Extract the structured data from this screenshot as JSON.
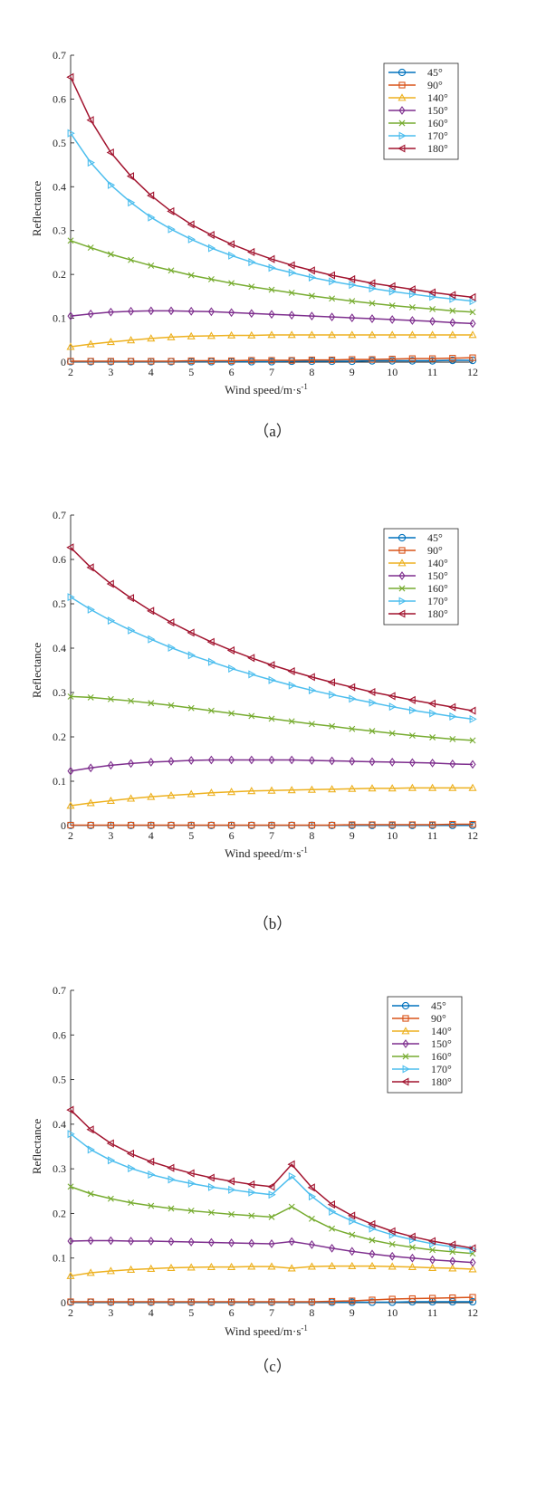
{
  "chart_data": [
    {
      "type": "line",
      "panel_label": "（a）",
      "ylabel": "Reflectance",
      "xlabel": "Wind speed/m·s",
      "xlabel_sup": "-1",
      "xlim": [
        2,
        12
      ],
      "ylim": [
        0,
        0.7
      ],
      "xticks": [
        2,
        3,
        4,
        5,
        6,
        7,
        8,
        9,
        10,
        11,
        12
      ],
      "yticks": [
        0,
        0.1,
        0.2,
        0.3,
        0.4,
        0.5,
        0.6,
        0.7
      ],
      "grid": false,
      "legend_position": "top-right",
      "x": [
        2,
        2.5,
        3,
        3.5,
        4,
        4.5,
        5,
        5.5,
        6,
        6.5,
        7,
        7.5,
        8,
        8.5,
        9,
        9.5,
        10,
        10.5,
        11,
        11.5,
        12
      ],
      "series": [
        {
          "name": "45°",
          "values": [
            0.001,
            0.001,
            0.001,
            0.001,
            0.001,
            0.001,
            0.001,
            0.001,
            0.001,
            0.001,
            0.001,
            0.002,
            0.002,
            0.002,
            0.002,
            0.003,
            0.003,
            0.003,
            0.003,
            0.004,
            0.004
          ]
        },
        {
          "name": "90°",
          "values": [
            0.002,
            0.002,
            0.002,
            0.002,
            0.002,
            0.002,
            0.003,
            0.003,
            0.003,
            0.004,
            0.004,
            0.004,
            0.005,
            0.005,
            0.006,
            0.006,
            0.007,
            0.008,
            0.008,
            0.009,
            0.01
          ]
        },
        {
          "name": "140°",
          "values": [
            0.035,
            0.041,
            0.046,
            0.05,
            0.054,
            0.057,
            0.059,
            0.06,
            0.061,
            0.061,
            0.062,
            0.062,
            0.062,
            0.062,
            0.062,
            0.062,
            0.062,
            0.062,
            0.062,
            0.062,
            0.062
          ]
        },
        {
          "name": "150°",
          "values": [
            0.105,
            0.11,
            0.114,
            0.116,
            0.117,
            0.117,
            0.116,
            0.115,
            0.113,
            0.111,
            0.109,
            0.107,
            0.105,
            0.103,
            0.101,
            0.099,
            0.097,
            0.095,
            0.093,
            0.09,
            0.088
          ]
        },
        {
          "name": "160°",
          "values": [
            0.277,
            0.261,
            0.246,
            0.233,
            0.22,
            0.209,
            0.198,
            0.189,
            0.18,
            0.172,
            0.165,
            0.158,
            0.151,
            0.145,
            0.139,
            0.134,
            0.129,
            0.125,
            0.121,
            0.117,
            0.114
          ]
        },
        {
          "name": "170°",
          "values": [
            0.522,
            0.455,
            0.404,
            0.364,
            0.33,
            0.303,
            0.28,
            0.26,
            0.243,
            0.228,
            0.215,
            0.204,
            0.193,
            0.184,
            0.176,
            0.168,
            0.161,
            0.155,
            0.149,
            0.144,
            0.139
          ]
        },
        {
          "name": "180°",
          "values": [
            0.65,
            0.552,
            0.478,
            0.424,
            0.38,
            0.344,
            0.314,
            0.29,
            0.269,
            0.251,
            0.235,
            0.221,
            0.209,
            0.198,
            0.189,
            0.18,
            0.173,
            0.166,
            0.159,
            0.153,
            0.148
          ]
        }
      ]
    },
    {
      "type": "line",
      "panel_label": "（b）",
      "ylabel": "Reflectance",
      "xlabel": "Wind speed/m·s",
      "xlabel_sup": "-1",
      "xlim": [
        2,
        12
      ],
      "ylim": [
        0,
        0.7
      ],
      "xticks": [
        2,
        3,
        4,
        5,
        6,
        7,
        8,
        9,
        10,
        11,
        12
      ],
      "yticks": [
        0,
        0.1,
        0.2,
        0.3,
        0.4,
        0.5,
        0.6,
        0.7
      ],
      "grid": false,
      "legend_position": "top-right",
      "x": [
        2,
        2.5,
        3,
        3.5,
        4,
        4.5,
        5,
        5.5,
        6,
        6.5,
        7,
        7.5,
        8,
        8.5,
        9,
        9.5,
        10,
        10.5,
        11,
        11.5,
        12
      ],
      "series": [
        {
          "name": "45°",
          "values": [
            0.0005,
            0.0005,
            0.0005,
            0.0005,
            0.0005,
            0.0005,
            0.0005,
            0.0005,
            0.0005,
            0.0005,
            0.0005,
            0.0005,
            0.0005,
            0.0005,
            0.0005,
            0.0005,
            0.0005,
            0.0005,
            0.0005,
            0.0005,
            0.0005
          ]
        },
        {
          "name": "90°",
          "values": [
            0.001,
            0.001,
            0.001,
            0.001,
            0.001,
            0.001,
            0.001,
            0.001,
            0.001,
            0.001,
            0.001,
            0.001,
            0.001,
            0.001,
            0.002,
            0.002,
            0.002,
            0.002,
            0.002,
            0.003,
            0.003
          ]
        },
        {
          "name": "140°",
          "values": [
            0.045,
            0.051,
            0.056,
            0.061,
            0.065,
            0.068,
            0.071,
            0.074,
            0.076,
            0.078,
            0.079,
            0.08,
            0.081,
            0.082,
            0.083,
            0.084,
            0.084,
            0.085,
            0.085,
            0.085,
            0.085
          ]
        },
        {
          "name": "150°",
          "values": [
            0.123,
            0.13,
            0.136,
            0.14,
            0.143,
            0.145,
            0.147,
            0.148,
            0.148,
            0.148,
            0.148,
            0.148,
            0.147,
            0.146,
            0.145,
            0.144,
            0.143,
            0.142,
            0.141,
            0.139,
            0.138
          ]
        },
        {
          "name": "160°",
          "values": [
            0.291,
            0.289,
            0.285,
            0.281,
            0.276,
            0.271,
            0.265,
            0.259,
            0.253,
            0.247,
            0.241,
            0.235,
            0.229,
            0.224,
            0.218,
            0.213,
            0.208,
            0.203,
            0.199,
            0.195,
            0.192
          ]
        },
        {
          "name": "170°",
          "values": [
            0.515,
            0.487,
            0.462,
            0.44,
            0.42,
            0.401,
            0.384,
            0.369,
            0.354,
            0.341,
            0.328,
            0.316,
            0.305,
            0.295,
            0.286,
            0.277,
            0.268,
            0.26,
            0.253,
            0.246,
            0.24
          ]
        },
        {
          "name": "180°",
          "values": [
            0.627,
            0.582,
            0.545,
            0.513,
            0.484,
            0.458,
            0.435,
            0.414,
            0.395,
            0.378,
            0.362,
            0.348,
            0.335,
            0.323,
            0.312,
            0.301,
            0.292,
            0.283,
            0.275,
            0.267,
            0.259
          ]
        }
      ]
    },
    {
      "type": "line",
      "panel_label": "（c）",
      "ylabel": "Reflectance",
      "xlabel": "Wind speed/m·s",
      "xlabel_sup": "-1",
      "xlim": [
        2,
        12
      ],
      "ylim": [
        0,
        0.7
      ],
      "xticks": [
        2,
        3,
        4,
        5,
        6,
        7,
        8,
        9,
        10,
        11,
        12
      ],
      "yticks": [
        0,
        0.1,
        0.2,
        0.3,
        0.4,
        0.5,
        0.6,
        0.7
      ],
      "grid": false,
      "legend_position": "top-right",
      "x": [
        2,
        2.5,
        3,
        3.5,
        4,
        4.5,
        5,
        5.5,
        6,
        6.5,
        7,
        7.5,
        8,
        8.5,
        9,
        9.5,
        10,
        10.5,
        11,
        11.5,
        12
      ],
      "series": [
        {
          "name": "45°",
          "values": [
            0.001,
            0.001,
            0.001,
            0.001,
            0.001,
            0.001,
            0.001,
            0.001,
            0.001,
            0.001,
            0.001,
            0.001,
            0.001,
            0.001,
            0.001,
            0.001,
            0.001,
            0.002,
            0.002,
            0.002,
            0.002
          ]
        },
        {
          "name": "90°",
          "values": [
            0.002,
            0.002,
            0.002,
            0.002,
            0.002,
            0.002,
            0.002,
            0.002,
            0.002,
            0.002,
            0.002,
            0.002,
            0.002,
            0.003,
            0.004,
            0.006,
            0.008,
            0.009,
            0.01,
            0.011,
            0.012
          ]
        },
        {
          "name": "140°",
          "values": [
            0.06,
            0.067,
            0.071,
            0.074,
            0.076,
            0.078,
            0.079,
            0.08,
            0.08,
            0.081,
            0.081,
            0.077,
            0.081,
            0.082,
            0.082,
            0.082,
            0.081,
            0.08,
            0.078,
            0.077,
            0.075
          ]
        },
        {
          "name": "150°",
          "values": [
            0.138,
            0.139,
            0.139,
            0.138,
            0.138,
            0.137,
            0.136,
            0.135,
            0.134,
            0.133,
            0.132,
            0.137,
            0.13,
            0.122,
            0.115,
            0.109,
            0.104,
            0.1,
            0.096,
            0.093,
            0.09
          ]
        },
        {
          "name": "160°",
          "values": [
            0.26,
            0.244,
            0.233,
            0.224,
            0.217,
            0.211,
            0.206,
            0.202,
            0.198,
            0.195,
            0.192,
            0.215,
            0.188,
            0.166,
            0.152,
            0.14,
            0.131,
            0.124,
            0.118,
            0.114,
            0.11
          ]
        },
        {
          "name": "170°",
          "values": [
            0.378,
            0.343,
            0.319,
            0.301,
            0.287,
            0.276,
            0.267,
            0.259,
            0.253,
            0.247,
            0.242,
            0.283,
            0.238,
            0.204,
            0.183,
            0.166,
            0.152,
            0.141,
            0.132,
            0.125,
            0.119
          ]
        },
        {
          "name": "180°",
          "values": [
            0.432,
            0.388,
            0.357,
            0.334,
            0.316,
            0.302,
            0.29,
            0.28,
            0.272,
            0.265,
            0.26,
            0.31,
            0.258,
            0.22,
            0.195,
            0.176,
            0.16,
            0.148,
            0.138,
            0.13,
            0.122
          ]
        }
      ]
    }
  ],
  "series_colors": [
    "#0072BD",
    "#D95319",
    "#EDB120",
    "#7E2F8E",
    "#77AC30",
    "#4DBEEE",
    "#A2142F"
  ],
  "series_markers": [
    "circle",
    "square",
    "triangle-up",
    "diamond",
    "x",
    "triangle-right",
    "triangle-left"
  ]
}
